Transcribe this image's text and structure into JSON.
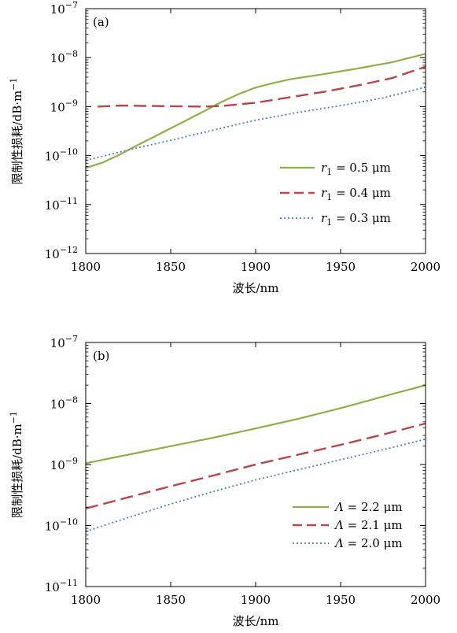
{
  "chart_data": [
    {
      "type": "line",
      "panel_label": "(a)",
      "xlabel": "波长/nm",
      "ylabel": "限制性损耗/dB·m",
      "ylabel_sup": "−1",
      "yscale": "log",
      "xlim": [
        1800,
        2000
      ],
      "ylim_exp": [
        -12,
        -7
      ],
      "x_ticks": [
        "1800",
        "1850",
        "1900",
        "1950",
        "2000"
      ],
      "y_ticks": [
        {
          "base": "10",
          "exp": "−12"
        },
        {
          "base": "10",
          "exp": "−11"
        },
        {
          "base": "10",
          "exp": "−10"
        },
        {
          "base": "10",
          "exp": "−9"
        },
        {
          "base": "10",
          "exp": "−8"
        },
        {
          "base": "10",
          "exp": "−7"
        }
      ],
      "legend_position": "lower-right",
      "series": [
        {
          "name": "r1 = 0.5 μm",
          "legend_var": "r",
          "legend_sub": "1",
          "legend_rest": " = 0.5 μm",
          "color": "#8db04a",
          "style": "solid",
          "points": [
            [
              1800,
              5.6e-11
            ],
            [
              1810,
              7.2e-11
            ],
            [
              1820,
              1.05e-10
            ],
            [
              1830,
              1.6e-10
            ],
            [
              1840,
              2.4e-10
            ],
            [
              1850,
              3.6e-10
            ],
            [
              1860,
              5.4e-10
            ],
            [
              1870,
              8.2e-10
            ],
            [
              1880,
              1.25e-09
            ],
            [
              1890,
              1.8e-09
            ],
            [
              1900,
              2.45e-09
            ],
            [
              1910,
              3e-09
            ],
            [
              1920,
              3.6e-09
            ],
            [
              1940,
              4.6e-09
            ],
            [
              1960,
              6e-09
            ],
            [
              1980,
              8e-09
            ],
            [
              2000,
              1.2e-08
            ]
          ]
        },
        {
          "name": "r1 = 0.4 μm",
          "legend_var": "r",
          "legend_sub": "1",
          "legend_rest": " = 0.4 μm",
          "color": "#b5474a",
          "style": "dashed",
          "points": [
            [
              1807,
              1e-09
            ],
            [
              1820,
              1.05e-09
            ],
            [
              1850,
              1.02e-09
            ],
            [
              1870,
              1e-09
            ],
            [
              1880,
              1.03e-09
            ],
            [
              1900,
              1.2e-09
            ],
            [
              1920,
              1.55e-09
            ],
            [
              1940,
              2e-09
            ],
            [
              1960,
              2.7e-09
            ],
            [
              1980,
              3.8e-09
            ],
            [
              2000,
              6.5e-09
            ]
          ]
        },
        {
          "name": "r1 = 0.3 μm",
          "legend_var": "r",
          "legend_sub": "1",
          "legend_rest": " = 0.3 μm",
          "color": "#4a7fc1",
          "style": "dotted",
          "points": [
            [
              1800,
              8e-11
            ],
            [
              1825,
              1.3e-10
            ],
            [
              1850,
              2.05e-10
            ],
            [
              1875,
              3.3e-10
            ],
            [
              1900,
              5.3e-10
            ],
            [
              1925,
              7.6e-10
            ],
            [
              1950,
              1.05e-09
            ],
            [
              1975,
              1.5e-09
            ],
            [
              2000,
              2.5e-09
            ]
          ]
        }
      ]
    },
    {
      "type": "line",
      "panel_label": "(b)",
      "xlabel": "波长/nm",
      "ylabel": "限制性损耗/dB·m",
      "ylabel_sup": "−1",
      "yscale": "log",
      "xlim": [
        1800,
        2000
      ],
      "ylim_exp": [
        -11,
        -7
      ],
      "x_ticks": [
        "1800",
        "1850",
        "1900",
        "1950",
        "2000"
      ],
      "y_ticks": [
        {
          "base": "10",
          "exp": "−11"
        },
        {
          "base": "10",
          "exp": "−10"
        },
        {
          "base": "10",
          "exp": "−9"
        },
        {
          "base": "10",
          "exp": "−8"
        },
        {
          "base": "10",
          "exp": "−7"
        }
      ],
      "legend_position": "lower-right",
      "series": [
        {
          "name": "Λ = 2.2 μm",
          "legend_var": "Λ",
          "legend_sub": "",
          "legend_rest": " = 2.2 μm",
          "color": "#8db04a",
          "style": "solid",
          "points": [
            [
              1800,
              1.05e-09
            ],
            [
              1825,
              1.45e-09
            ],
            [
              1850,
              2e-09
            ],
            [
              1875,
              2.75e-09
            ],
            [
              1900,
              3.9e-09
            ],
            [
              1925,
              5.6e-09
            ],
            [
              1950,
              8.4e-09
            ],
            [
              1975,
              1.3e-08
            ],
            [
              2000,
              2e-08
            ]
          ]
        },
        {
          "name": "Λ = 2.1 μm",
          "legend_var": "Λ",
          "legend_sub": "",
          "legend_rest": " = 2.1 μm",
          "color": "#b5474a",
          "style": "dashed",
          "points": [
            [
              1800,
              1.9e-10
            ],
            [
              1825,
              2.9e-10
            ],
            [
              1850,
              4.4e-10
            ],
            [
              1875,
              6.6e-10
            ],
            [
              1900,
              1e-09
            ],
            [
              1925,
              1.45e-09
            ],
            [
              1950,
              2.1e-09
            ],
            [
              1975,
              3.1e-09
            ],
            [
              2000,
              4.7e-09
            ]
          ]
        },
        {
          "name": "Λ = 2.0 μm",
          "legend_var": "Λ",
          "legend_sub": "",
          "legend_rest": " = 2.0 μm",
          "color": "#4a7fc1",
          "style": "dotted",
          "points": [
            [
              1800,
              8e-11
            ],
            [
              1825,
              1.35e-10
            ],
            [
              1850,
              2.25e-10
            ],
            [
              1875,
              3.6e-10
            ],
            [
              1900,
              5.6e-10
            ],
            [
              1925,
              8.2e-10
            ],
            [
              1950,
              1.2e-09
            ],
            [
              1975,
              1.75e-09
            ],
            [
              2000,
              2.6e-09
            ]
          ]
        }
      ]
    }
  ]
}
